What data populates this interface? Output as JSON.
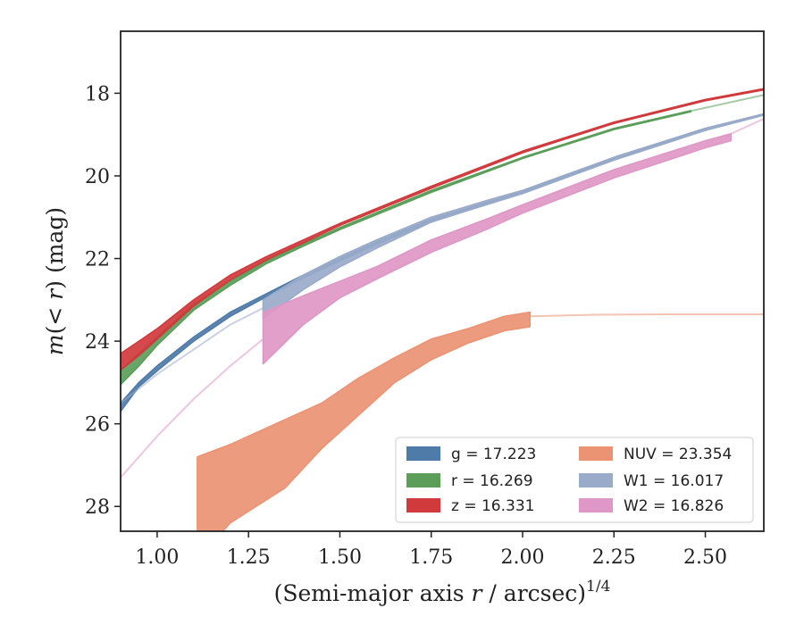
{
  "chart_data": {
    "type": "area",
    "xlabel": "(Semi-major axis r / arcsec)^1/4",
    "ylabel": "m(< r) (mag)",
    "xlim": [
      0.9,
      2.66
    ],
    "ylim": [
      28.6,
      16.5
    ],
    "y_inverted": true,
    "x_ticks": [
      1.0,
      1.25,
      1.5,
      1.75,
      2.0,
      2.25,
      2.5
    ],
    "x_tick_labels": [
      "1.00",
      "1.25",
      "1.50",
      "1.75",
      "2.00",
      "2.25",
      "2.50"
    ],
    "y_ticks": [
      18,
      20,
      22,
      24,
      26,
      28
    ],
    "y_tick_labels": [
      "18",
      "20",
      "22",
      "24",
      "26",
      "28"
    ],
    "legend": {
      "placement": "lower-right",
      "columns": 2
    },
    "series": [
      {
        "band": "g",
        "label": "g = 17.223",
        "color": "#4f7ba8",
        "band_x": [
          0.9,
          0.95,
          1.0,
          1.1,
          1.2,
          1.3,
          1.4,
          1.5,
          1.6,
          1.75,
          1.9,
          2.0,
          2.25,
          2.5,
          2.66
        ],
        "band_lo": [
          25.5,
          25.0,
          24.6,
          23.9,
          23.3,
          22.85,
          22.4,
          22.0,
          21.6,
          21.05,
          20.65,
          20.38,
          19.55,
          18.85,
          18.5
        ],
        "band_hi": [
          25.7,
          25.1,
          24.72,
          24.0,
          23.4,
          22.92,
          22.47,
          22.06,
          21.66,
          21.1,
          20.7,
          20.42,
          19.59,
          18.88,
          18.52
        ],
        "ext_x": [],
        "ext_y": []
      },
      {
        "band": "r",
        "label": "r = 16.269",
        "color": "#5a9e59",
        "band_x": [
          0.9,
          0.95,
          1.0,
          1.1,
          1.2,
          1.3,
          1.4,
          1.5,
          1.75,
          2.0,
          2.25,
          2.46
        ],
        "band_lo": [
          24.7,
          24.3,
          23.9,
          23.1,
          22.55,
          22.05,
          21.65,
          21.25,
          20.35,
          19.55,
          18.85,
          18.42
        ],
        "band_hi": [
          25.05,
          24.6,
          24.1,
          23.25,
          22.65,
          22.12,
          21.7,
          21.3,
          20.4,
          19.58,
          18.88,
          18.45
        ],
        "ext_x": [
          2.46,
          2.66
        ],
        "ext_y": [
          18.43,
          18.04
        ]
      },
      {
        "band": "z",
        "label": "z = 16.331",
        "color": "#d03a3d",
        "band_x": [
          0.9,
          0.95,
          1.0,
          1.1,
          1.2,
          1.3,
          1.4,
          1.5,
          1.75,
          2.0,
          2.25,
          2.5,
          2.66
        ],
        "band_lo": [
          24.3,
          24.0,
          23.7,
          23.0,
          22.4,
          21.95,
          21.55,
          21.15,
          20.25,
          19.4,
          18.7,
          18.15,
          17.89
        ],
        "band_hi": [
          24.7,
          24.35,
          23.95,
          23.15,
          22.52,
          22.03,
          21.62,
          21.2,
          20.3,
          19.44,
          18.73,
          18.18,
          17.92
        ],
        "ext_x": [],
        "ext_y": []
      },
      {
        "band": "NUV",
        "label": "NUV = 23.354",
        "color": "#eb9373",
        "band_x": [
          1.11,
          1.2,
          1.35,
          1.45,
          1.55,
          1.65,
          1.75,
          1.85,
          1.95,
          2.02
        ],
        "band_lo": [
          26.8,
          26.5,
          25.9,
          25.5,
          24.9,
          24.4,
          23.95,
          23.7,
          23.4,
          23.3
        ],
        "band_hi": [
          29.3,
          28.4,
          27.55,
          26.6,
          25.8,
          25.0,
          24.45,
          24.05,
          23.75,
          23.65
        ],
        "ext_x": [
          2.02,
          2.2,
          2.4,
          2.66
        ],
        "ext_y": [
          23.4,
          23.36,
          23.35,
          23.35
        ]
      },
      {
        "band": "W1",
        "label": "W1 = 16.017",
        "color": "#9aabca",
        "band_x": [
          1.29,
          1.4,
          1.5,
          1.6,
          1.75,
          1.9,
          2.0,
          2.25,
          2.5,
          2.66
        ],
        "band_lo": [
          23.0,
          22.4,
          21.95,
          21.55,
          21.0,
          20.6,
          20.35,
          19.55,
          18.85,
          18.5
        ],
        "band_hi": [
          23.45,
          22.75,
          22.2,
          21.75,
          21.12,
          20.7,
          20.43,
          19.62,
          18.9,
          18.53
        ],
        "ext_x": [
          0.9,
          1.0,
          1.1,
          1.2,
          1.29
        ],
        "ext_y": [
          25.5,
          24.8,
          24.2,
          23.6,
          23.2
        ]
      },
      {
        "band": "W2",
        "label": "W2 = 16.826",
        "color": "#de97c6",
        "band_x": [
          1.29,
          1.4,
          1.5,
          1.6,
          1.75,
          1.9,
          2.0,
          2.25,
          2.5,
          2.57
        ],
        "band_lo": [
          23.3,
          22.9,
          22.55,
          22.2,
          21.55,
          21.05,
          20.7,
          19.85,
          19.15,
          18.98
        ],
        "band_hi": [
          24.55,
          23.6,
          22.95,
          22.5,
          21.85,
          21.3,
          20.9,
          20.05,
          19.32,
          19.15
        ],
        "ext_x": [
          0.9,
          1.0,
          1.1,
          1.2,
          1.29
        ],
        "ext_y": [
          27.3,
          26.3,
          25.4,
          24.6,
          23.95
        ],
        "ext2_x": [
          2.57,
          2.66
        ],
        "ext2_y": [
          18.98,
          18.62
        ]
      }
    ]
  }
}
